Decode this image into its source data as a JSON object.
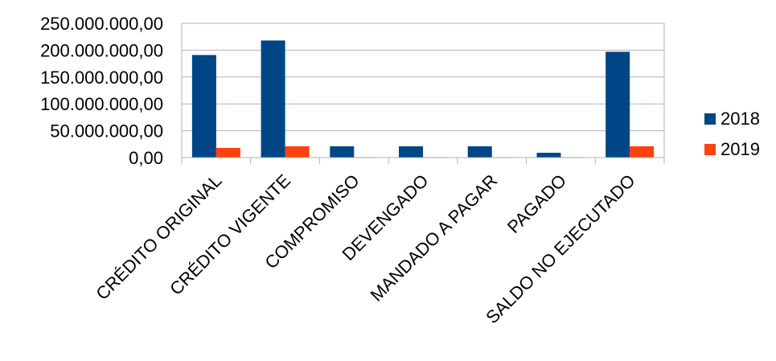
{
  "chart_data": {
    "type": "bar",
    "title": "",
    "xlabel": "",
    "ylabel": "",
    "categories": [
      "CRÉDITO ORIGINAL",
      "CRÉDITO VIGENTE",
      "COMPROMISO",
      "DEVENGADO",
      "MANDADO A PAGAR",
      "PAGADO",
      "SALDO NO EJECUTADO"
    ],
    "series": [
      {
        "name": "2018",
        "color": "#004586",
        "values": [
          191000000,
          218000000,
          21000000,
          21000000,
          21000000,
          9000000,
          197000000
        ]
      },
      {
        "name": "2019",
        "color": "#ff420e",
        "values": [
          18000000,
          21000000,
          500000,
          500000,
          500000,
          300000,
          21000000
        ]
      }
    ],
    "ylim": [
      0,
      250000000
    ],
    "yticks": [
      0,
      50000000,
      100000000,
      150000000,
      200000000,
      250000000
    ],
    "ytick_labels": [
      "0,00",
      "50.000.000,00",
      "100.000.000,00",
      "150.000.000,00",
      "200.000.000,00",
      "250.000.000,00"
    ],
    "grid": true,
    "legend_position": "right"
  }
}
